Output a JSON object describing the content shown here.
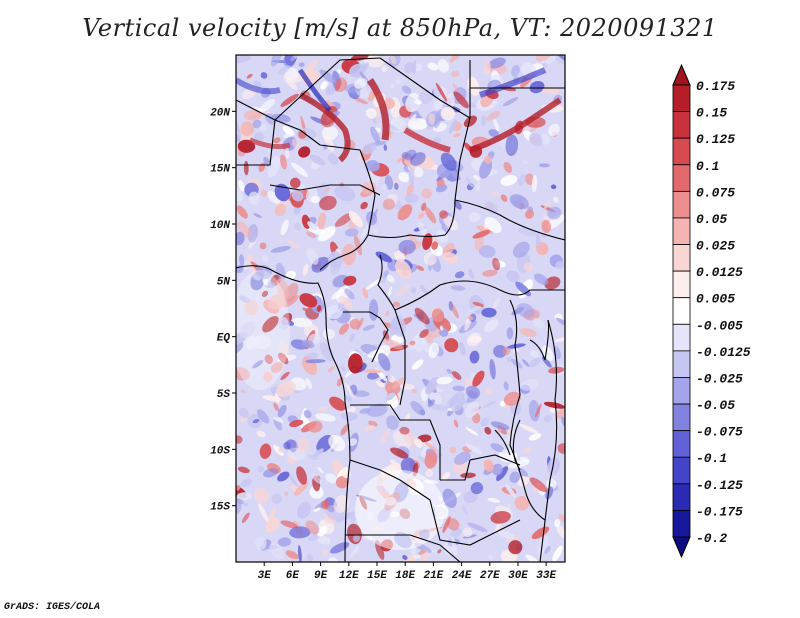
{
  "title": "Vertical velocity [m/s] at 850hPa, VT: 2020091321",
  "credit": "GrADS: IGES/COLA",
  "map": {
    "lon_range": [
      0,
      35
    ],
    "lat_range": [
      -20,
      25
    ],
    "lat_ticks": [
      "20N",
      "15N",
      "10N",
      "5N",
      "EQ",
      "5S",
      "10S",
      "15S"
    ],
    "lon_ticks": [
      "3E",
      "6E",
      "9E",
      "12E",
      "15E",
      "18E",
      "21E",
      "24E",
      "27E",
      "30E",
      "33E"
    ]
  },
  "colorbar": {
    "levels": [
      "0.175",
      "0.15",
      "0.125",
      "0.1",
      "0.075",
      "0.05",
      "0.025",
      "0.0125",
      "0.005",
      "-0.005",
      "-0.0125",
      "-0.025",
      "-0.05",
      "-0.075",
      "-0.1",
      "-0.125",
      "-0.175",
      "-0.2"
    ],
    "colors": [
      "#a0141e",
      "#b41e28",
      "#c8323c",
      "#d74a50",
      "#e26a6c",
      "#ec8e8e",
      "#f4b4b2",
      "#f9d6d4",
      "#fdeeee",
      "#ffffff",
      "#e4e4fa",
      "#c6c6f2",
      "#a4a4ea",
      "#8282e0",
      "#6262d6",
      "#4444c8",
      "#2a2ab4",
      "#18189c",
      "#0c0c80"
    ]
  }
}
